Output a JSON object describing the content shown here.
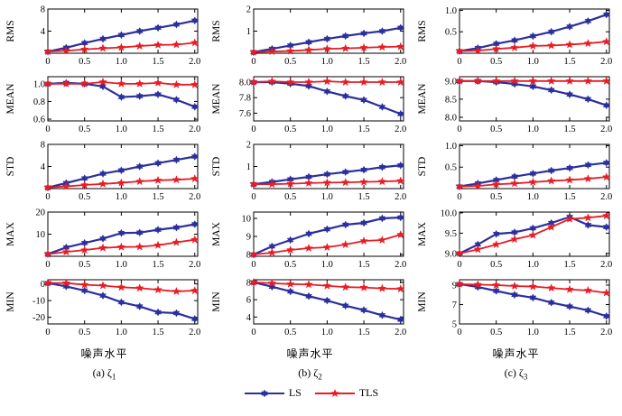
{
  "figure": {
    "xlabel": "噪声水平",
    "legend": [
      {
        "label": "LS",
        "color": "#2b2f9e",
        "marker": "hexagram"
      },
      {
        "label": "TLS",
        "color": "#e81c24",
        "marker": "star5"
      }
    ],
    "captions": [
      {
        "prefix": "(a) ζ",
        "sub": "1"
      },
      {
        "prefix": "(b) ζ",
        "sub": "2"
      },
      {
        "prefix": "(c) ζ",
        "sub": "3"
      }
    ]
  },
  "axes": {
    "x": [
      0,
      0.25,
      0.5,
      0.75,
      1.0,
      1.25,
      1.5,
      1.75,
      2.0
    ],
    "xlim": [
      0,
      2.04
    ],
    "xtick_vals": [
      0,
      0.5,
      1.0,
      1.5,
      2.0
    ],
    "xtick_labels": [
      "0",
      "0.5",
      "1.0",
      "1.5",
      "2.0"
    ]
  },
  "chart_data": [
    {
      "type": "line",
      "col": "a",
      "metric": "RMS",
      "ylabel": "RMS",
      "ylim": [
        0,
        8
      ],
      "ytick_vals": [
        4,
        8
      ],
      "ytick_labels": [
        "4",
        "8"
      ],
      "series": [
        {
          "name": "LS",
          "values": [
            0.3,
            1.0,
            1.85,
            2.6,
            3.3,
            4.0,
            4.6,
            5.2,
            5.9
          ]
        },
        {
          "name": "TLS",
          "values": [
            0.3,
            0.45,
            0.7,
            0.9,
            1.05,
            1.3,
            1.5,
            1.55,
            1.9
          ]
        }
      ]
    },
    {
      "type": "line",
      "col": "a",
      "metric": "MEAN",
      "ylabel": "MEAN",
      "ylim": [
        0.58,
        1.08
      ],
      "ytick_vals": [
        0.6,
        0.8,
        1.0
      ],
      "ytick_labels": [
        "0.6",
        "0.8",
        "1.0"
      ],
      "series": [
        {
          "name": "LS",
          "values": [
            1.0,
            1.01,
            1.0,
            0.97,
            0.85,
            0.86,
            0.88,
            0.82,
            0.74
          ]
        },
        {
          "name": "TLS",
          "values": [
            1.0,
            1.0,
            1.0,
            1.02,
            1.0,
            1.0,
            1.01,
            0.99,
            0.99
          ]
        }
      ]
    },
    {
      "type": "line",
      "col": "a",
      "metric": "STD",
      "ylabel": "STD",
      "ylim": [
        0,
        8
      ],
      "ytick_vals": [
        4,
        8
      ],
      "ytick_labels": [
        "4",
        "8"
      ],
      "series": [
        {
          "name": "LS",
          "values": [
            0.2,
            1.0,
            1.85,
            2.7,
            3.3,
            4.0,
            4.6,
            5.2,
            5.8
          ]
        },
        {
          "name": "TLS",
          "values": [
            0.2,
            0.4,
            0.65,
            0.85,
            1.05,
            1.3,
            1.5,
            1.6,
            1.8
          ]
        }
      ]
    },
    {
      "type": "line",
      "col": "a",
      "metric": "MAX",
      "ylabel": "MAX",
      "ylim": [
        0,
        20
      ],
      "ytick_vals": [
        10,
        20
      ],
      "ytick_labels": [
        "10",
        "20"
      ],
      "series": [
        {
          "name": "LS",
          "values": [
            1.0,
            4.0,
            6.0,
            8.0,
            10.5,
            10.7,
            12.0,
            13.0,
            14.5
          ]
        },
        {
          "name": "TLS",
          "values": [
            1.0,
            2.0,
            2.8,
            3.8,
            4.2,
            4.3,
            5.0,
            6.3,
            7.5
          ]
        }
      ]
    },
    {
      "type": "line",
      "col": "a",
      "metric": "MIN",
      "ylabel": "MIN",
      "ylim": [
        -24,
        2.5
      ],
      "ytick_vals": [
        -20,
        -10,
        0
      ],
      "ytick_labels": [
        "-20",
        "-10",
        "0"
      ],
      "series": [
        {
          "name": "LS",
          "values": [
            0.5,
            -1.5,
            -4.0,
            -7.0,
            -11.0,
            -13.5,
            -17.0,
            -17.5,
            -21.0
          ]
        },
        {
          "name": "TLS",
          "values": [
            0.5,
            0.5,
            -0.5,
            -1.0,
            -2.0,
            -2.5,
            -3.5,
            -4.5,
            -4.0
          ]
        }
      ]
    },
    {
      "type": "line",
      "col": "b",
      "metric": "RMS",
      "ylabel": "RMS",
      "ylim": [
        0,
        2
      ],
      "ytick_vals": [
        1,
        2
      ],
      "ytick_labels": [
        "1",
        "2"
      ],
      "series": [
        {
          "name": "LS",
          "values": [
            0.05,
            0.2,
            0.35,
            0.5,
            0.65,
            0.78,
            0.9,
            1.0,
            1.15
          ]
        },
        {
          "name": "TLS",
          "values": [
            0.05,
            0.08,
            0.1,
            0.15,
            0.2,
            0.22,
            0.25,
            0.28,
            0.3
          ]
        }
      ]
    },
    {
      "type": "line",
      "col": "b",
      "metric": "MEAN",
      "ylabel": "MEAN",
      "ylim": [
        7.5,
        8.07
      ],
      "ytick_vals": [
        7.6,
        7.8,
        8.0
      ],
      "ytick_labels": [
        "7.6",
        "7.8",
        "8.0"
      ],
      "series": [
        {
          "name": "LS",
          "values": [
            8.0,
            8.0,
            7.98,
            7.95,
            7.88,
            7.82,
            7.77,
            7.68,
            7.59
          ]
        },
        {
          "name": "TLS",
          "values": [
            8.0,
            8.01,
            8.0,
            8.0,
            8.01,
            8.0,
            8.0,
            8.0,
            8.0
          ]
        }
      ]
    },
    {
      "type": "line",
      "col": "b",
      "metric": "STD",
      "ylabel": "STD",
      "ylim": [
        0,
        2
      ],
      "ytick_vals": [
        1,
        2
      ],
      "ytick_labels": [
        "1",
        "2"
      ],
      "series": [
        {
          "name": "LS",
          "values": [
            0.2,
            0.3,
            0.42,
            0.53,
            0.65,
            0.75,
            0.85,
            0.97,
            1.05
          ]
        },
        {
          "name": "TLS",
          "values": [
            0.2,
            0.2,
            0.22,
            0.25,
            0.27,
            0.28,
            0.3,
            0.32,
            0.35
          ]
        }
      ]
    },
    {
      "type": "line",
      "col": "b",
      "metric": "MAX",
      "ylabel": "MAX",
      "ylim": [
        7.9,
        10.35
      ],
      "ytick_vals": [
        8,
        9,
        10
      ],
      "ytick_labels": [
        "8",
        "9",
        "10"
      ],
      "series": [
        {
          "name": "LS",
          "values": [
            8.0,
            8.45,
            8.8,
            9.15,
            9.4,
            9.65,
            9.75,
            10.0,
            10.05
          ]
        },
        {
          "name": "TLS",
          "values": [
            8.0,
            8.1,
            8.25,
            8.35,
            8.4,
            8.55,
            8.75,
            8.8,
            9.1
          ]
        }
      ]
    },
    {
      "type": "line",
      "col": "b",
      "metric": "MIN",
      "ylabel": "MIN",
      "ylim": [
        3.2,
        8.3
      ],
      "ytick_vals": [
        4,
        6,
        8
      ],
      "ytick_labels": [
        "4",
        "6",
        "8"
      ],
      "series": [
        {
          "name": "LS",
          "values": [
            8.0,
            7.5,
            6.95,
            6.4,
            5.9,
            5.3,
            4.8,
            4.2,
            3.7
          ]
        },
        {
          "name": "TLS",
          "values": [
            8.0,
            7.9,
            7.8,
            7.75,
            7.6,
            7.45,
            7.4,
            7.3,
            7.25
          ]
        }
      ]
    },
    {
      "type": "line",
      "col": "c",
      "metric": "RMS",
      "ylabel": "RMS",
      "ylim": [
        0,
        1.03
      ],
      "ytick_vals": [
        0.5,
        1.0
      ],
      "ytick_labels": [
        "0.5",
        "1.0"
      ],
      "series": [
        {
          "name": "LS",
          "values": [
            0.05,
            0.12,
            0.22,
            0.3,
            0.4,
            0.5,
            0.62,
            0.75,
            0.9
          ]
        },
        {
          "name": "TLS",
          "values": [
            0.05,
            0.06,
            0.1,
            0.13,
            0.17,
            0.18,
            0.2,
            0.23,
            0.27
          ]
        }
      ]
    },
    {
      "type": "line",
      "col": "c",
      "metric": "MEAN",
      "ylabel": "MEAN",
      "ylim": [
        7.9,
        9.12
      ],
      "ytick_vals": [
        8.0,
        8.5,
        9.0
      ],
      "ytick_labels": [
        "8.0",
        "8.5",
        "9.0"
      ],
      "series": [
        {
          "name": "LS",
          "values": [
            9.0,
            9.0,
            8.97,
            8.92,
            8.85,
            8.75,
            8.63,
            8.5,
            8.33
          ]
        },
        {
          "name": "TLS",
          "values": [
            9.0,
            9.0,
            9.0,
            9.0,
            9.0,
            9.0,
            9.0,
            9.0,
            9.0
          ]
        }
      ]
    },
    {
      "type": "line",
      "col": "c",
      "metric": "STD",
      "ylabel": "STD",
      "ylim": [
        0,
        1.03
      ],
      "ytick_vals": [
        0.5,
        1.0
      ],
      "ytick_labels": [
        "0.5",
        "1.0"
      ],
      "series": [
        {
          "name": "LS",
          "values": [
            0.05,
            0.12,
            0.2,
            0.28,
            0.35,
            0.42,
            0.48,
            0.55,
            0.6
          ]
        },
        {
          "name": "TLS",
          "values": [
            0.05,
            0.06,
            0.1,
            0.12,
            0.15,
            0.18,
            0.2,
            0.23,
            0.27
          ]
        }
      ]
    },
    {
      "type": "line",
      "col": "c",
      "metric": "MAX",
      "ylabel": "MAX",
      "ylim": [
        8.93,
        10.02
      ],
      "ytick_vals": [
        9.0,
        9.5,
        10.0
      ],
      "ytick_labels": [
        "9.0",
        "9.5",
        "10.0"
      ],
      "series": [
        {
          "name": "LS",
          "values": [
            9.0,
            9.22,
            9.48,
            9.52,
            9.62,
            9.75,
            9.9,
            9.7,
            9.65
          ]
        },
        {
          "name": "TLS",
          "values": [
            9.0,
            9.1,
            9.22,
            9.35,
            9.45,
            9.65,
            9.85,
            9.88,
            9.93
          ]
        }
      ]
    },
    {
      "type": "line",
      "col": "c",
      "metric": "MIN",
      "ylabel": "MIN",
      "ylim": [
        5,
        9.55
      ],
      "ytick_vals": [
        5,
        7,
        9
      ],
      "ytick_labels": [
        "5",
        "7",
        "9"
      ],
      "series": [
        {
          "name": "LS",
          "values": [
            9.1,
            8.8,
            8.4,
            8.0,
            7.7,
            7.2,
            6.8,
            6.4,
            5.8
          ]
        },
        {
          "name": "TLS",
          "values": [
            9.1,
            9.05,
            9.0,
            8.9,
            8.85,
            8.7,
            8.55,
            8.45,
            8.2
          ]
        }
      ]
    }
  ]
}
